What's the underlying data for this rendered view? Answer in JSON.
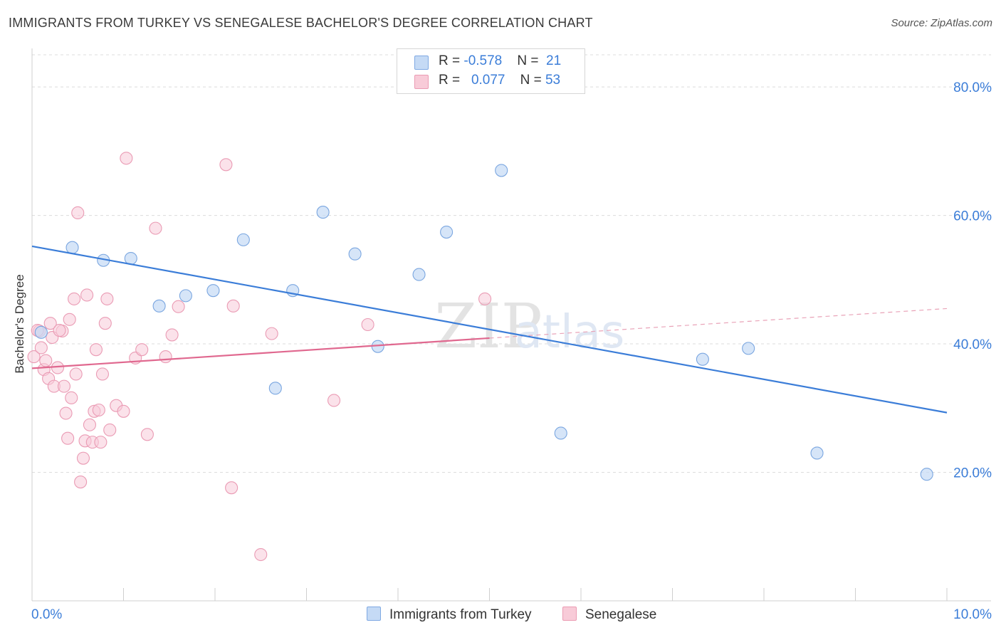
{
  "title": "IMMIGRANTS FROM TURKEY VS SENEGALESE BACHELOR'S DEGREE CORRELATION CHART",
  "source": "Source: ZipAtlas.com",
  "watermark": "ZIPatlas",
  "legend": {
    "rows": [
      {
        "r_label": "R = ",
        "r_value": "-0.578",
        "n_label": "N = ",
        "n_value": "21",
        "color": "#a9c8f0"
      },
      {
        "r_label": "R = ",
        "r_value": "0.077",
        "n_label": "N = ",
        "n_value": "53",
        "color": "#f5b8c9"
      }
    ]
  },
  "bottom_legend": {
    "turkey": "Immigrants from Turkey",
    "senegalese": "Senegalese"
  },
  "chart_data": {
    "type": "scatter",
    "title": "IMMIGRANTS FROM TURKEY VS SENEGALESE BACHELOR'S DEGREE CORRELATION CHART",
    "xlabel": "",
    "ylabel": "Bachelor's Degree",
    "xlim": [
      0,
      10
    ],
    "ylim": [
      0,
      85
    ],
    "x_tick_labels": [
      "0.0%",
      "10.0%"
    ],
    "y_ticks": [
      20,
      40,
      60,
      80
    ],
    "y_tick_labels": [
      "20.0%",
      "40.0%",
      "60.0%",
      "80.0%"
    ],
    "grid": true,
    "colors": {
      "turkey": "#3b7dd8",
      "turkey_fill": "#c5daf5",
      "senegalese": "#e0688f",
      "senegalese_fill": "#f8cbd8",
      "tick_label": "#3b7dd8"
    },
    "series": [
      {
        "name": "Immigrants from Turkey",
        "r": -0.578,
        "n": 21,
        "points": [
          [
            0.1,
            41.8
          ],
          [
            0.44,
            55.0
          ],
          [
            0.78,
            53.0
          ],
          [
            1.08,
            53.3
          ],
          [
            1.39,
            45.9
          ],
          [
            1.68,
            47.5
          ],
          [
            1.98,
            48.3
          ],
          [
            2.31,
            56.2
          ],
          [
            2.66,
            33.1
          ],
          [
            2.85,
            48.3
          ],
          [
            3.18,
            60.5
          ],
          [
            3.53,
            54.0
          ],
          [
            3.78,
            39.6
          ],
          [
            4.23,
            50.8
          ],
          [
            4.53,
            57.4
          ],
          [
            5.13,
            67.0
          ],
          [
            5.78,
            26.1
          ],
          [
            7.33,
            37.6
          ],
          [
            7.83,
            39.3
          ],
          [
            8.58,
            23.0
          ],
          [
            9.78,
            19.7
          ]
        ],
        "trend": {
          "x": [
            0,
            10
          ],
          "y": [
            55.2,
            29.3
          ]
        }
      },
      {
        "name": "Senegalese",
        "r": 0.077,
        "n": 53,
        "points": [
          [
            0.02,
            38.0
          ],
          [
            0.08,
            42.0
          ],
          [
            0.1,
            39.4
          ],
          [
            0.13,
            36.0
          ],
          [
            0.15,
            37.4
          ],
          [
            0.18,
            34.6
          ],
          [
            0.2,
            43.2
          ],
          [
            0.22,
            41.0
          ],
          [
            0.24,
            33.4
          ],
          [
            0.28,
            36.3
          ],
          [
            0.33,
            42.0
          ],
          [
            0.35,
            33.4
          ],
          [
            0.37,
            29.2
          ],
          [
            0.39,
            25.3
          ],
          [
            0.41,
            43.8
          ],
          [
            0.43,
            31.6
          ],
          [
            0.46,
            47.0
          ],
          [
            0.48,
            35.3
          ],
          [
            0.5,
            60.4
          ],
          [
            0.53,
            18.5
          ],
          [
            0.56,
            22.2
          ],
          [
            0.58,
            24.9
          ],
          [
            0.6,
            47.6
          ],
          [
            0.63,
            27.4
          ],
          [
            0.66,
            24.7
          ],
          [
            0.68,
            29.5
          ],
          [
            0.7,
            39.1
          ],
          [
            0.73,
            29.7
          ],
          [
            0.75,
            24.7
          ],
          [
            0.77,
            35.3
          ],
          [
            0.8,
            43.2
          ],
          [
            0.82,
            47.0
          ],
          [
            0.85,
            26.6
          ],
          [
            0.92,
            30.4
          ],
          [
            1.0,
            29.5
          ],
          [
            1.03,
            68.9
          ],
          [
            1.13,
            37.8
          ],
          [
            1.2,
            39.1
          ],
          [
            1.26,
            25.9
          ],
          [
            1.35,
            58.0
          ],
          [
            1.46,
            38.0
          ],
          [
            1.53,
            41.4
          ],
          [
            1.6,
            45.8
          ],
          [
            2.12,
            67.9
          ],
          [
            2.18,
            17.6
          ],
          [
            2.2,
            45.9
          ],
          [
            2.5,
            7.2
          ],
          [
            2.62,
            41.6
          ],
          [
            3.3,
            31.2
          ],
          [
            3.67,
            43.0
          ],
          [
            4.95,
            47.0
          ],
          [
            0.06,
            42.1
          ],
          [
            0.3,
            42.1
          ]
        ],
        "trend": {
          "x": [
            0,
            5.0
          ],
          "y": [
            36.2,
            40.9
          ]
        },
        "trend_extension": {
          "x": [
            5.0,
            10
          ],
          "y": [
            40.9,
            45.5
          ]
        }
      }
    ]
  }
}
